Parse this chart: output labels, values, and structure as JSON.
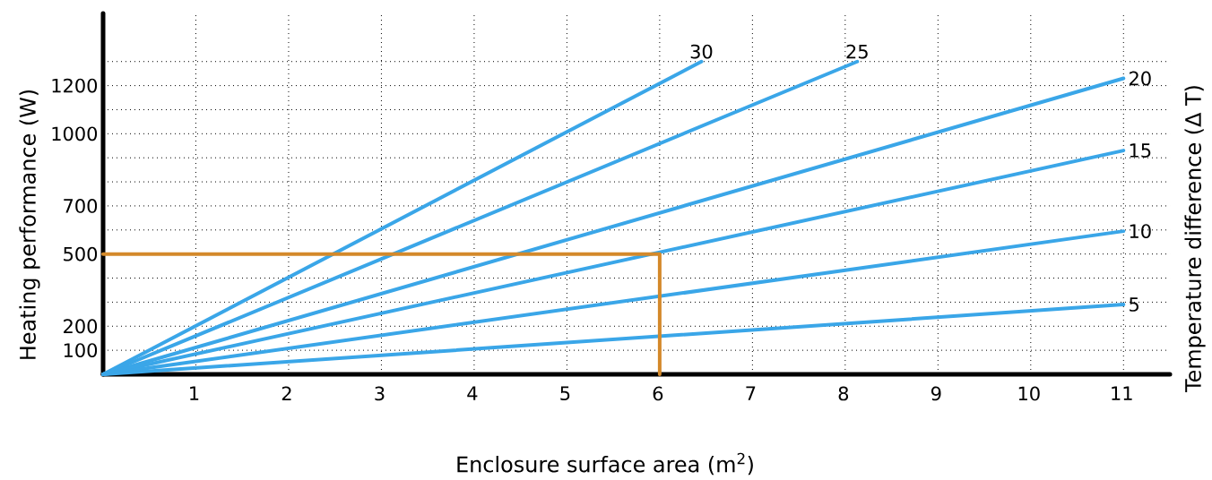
{
  "chart_data": {
    "type": "line",
    "xlabel": "Enclosure surface area (m$^{2}$)",
    "ylabel": "Heating performance (W)",
    "legend_title": "Temperature difference (Δ T)",
    "xlim": [
      0,
      11.5
    ],
    "ylim": [
      0,
      1500
    ],
    "xticks": [
      1,
      2,
      3,
      4,
      5,
      6,
      7,
      8,
      9,
      10,
      11
    ],
    "yticks": [
      100,
      200,
      {
        "value": 300,
        "label": null
      },
      {
        "value": 400,
        "label": null
      },
      500,
      {
        "value": 600,
        "label": null
      },
      700,
      {
        "value": 800,
        "label": null
      },
      {
        "value": 900,
        "label": null
      },
      1000,
      {
        "value": 1100,
        "label": null
      },
      1200,
      {
        "value": 1300,
        "label": null
      }
    ],
    "grid": true,
    "marker": "none",
    "line_style": "solid",
    "series": [
      {
        "name": "30",
        "color": "#3aa6e8",
        "x": [
          0,
          6.45
        ],
        "values": [
          0,
          1300
        ]
      },
      {
        "name": "25",
        "color": "#3aa6e8",
        "x": [
          0,
          8.13
        ],
        "values": [
          0,
          1300
        ]
      },
      {
        "name": "20",
        "color": "#3aa6e8",
        "x": [
          0,
          11
        ],
        "values": [
          0,
          1230
        ]
      },
      {
        "name": "15",
        "color": "#3aa6e8",
        "x": [
          0,
          11
        ],
        "values": [
          0,
          930
        ]
      },
      {
        "name": "10",
        "color": "#3aa6e8",
        "x": [
          0,
          11
        ],
        "values": [
          0,
          595
        ]
      },
      {
        "name": "5",
        "color": "#3aa6e8",
        "x": [
          0,
          11
        ],
        "values": [
          0,
          290
        ]
      },
      {
        "color": "#d4892a",
        "x": [
          0,
          6,
          6
        ],
        "values": [
          500,
          500,
          0
        ]
      }
    ]
  }
}
